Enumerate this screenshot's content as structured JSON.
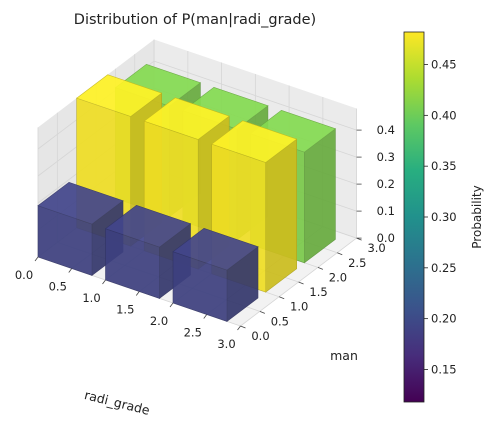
{
  "chart_data": {
    "type": "bar3d",
    "title": "Distribution of P(man|radi_grade)",
    "xlabel": "radi_grade",
    "ylabel": "man",
    "colorbar_label": "Probability",
    "colormap": "viridis",
    "xlim": [
      0,
      3
    ],
    "ylim": [
      0,
      3
    ],
    "zlim": [
      0,
      0.48
    ],
    "x_ticks": [
      "0.0",
      "0.5",
      "1.0",
      "1.5",
      "2.0",
      "2.5",
      "3.0"
    ],
    "y_ticks": [
      "0.0",
      "0.5",
      "1.0",
      "1.5",
      "2.0",
      "2.5",
      "3.0"
    ],
    "z_ticks": [
      "0.0",
      "0.1",
      "0.2",
      "0.3",
      "0.4"
    ],
    "colorbar_ticks": [
      "0.15",
      "0.20",
      "0.25",
      "0.30",
      "0.35",
      "0.40",
      "0.45"
    ],
    "colorbar_range": [
      0.118,
      0.482
    ],
    "bars": [
      {
        "radi_grade": 0,
        "man": 0,
        "p": 0.19
      },
      {
        "radi_grade": 0,
        "man": 1,
        "p": 0.48
      },
      {
        "radi_grade": 0,
        "man": 2,
        "p": 0.41
      },
      {
        "radi_grade": 1,
        "man": 0,
        "p": 0.19
      },
      {
        "radi_grade": 1,
        "man": 1,
        "p": 0.48
      },
      {
        "radi_grade": 1,
        "man": 2,
        "p": 0.41
      },
      {
        "radi_grade": 2,
        "man": 0,
        "p": 0.19
      },
      {
        "radi_grade": 2,
        "man": 1,
        "p": 0.48
      },
      {
        "radi_grade": 2,
        "man": 2,
        "p": 0.41
      }
    ]
  }
}
